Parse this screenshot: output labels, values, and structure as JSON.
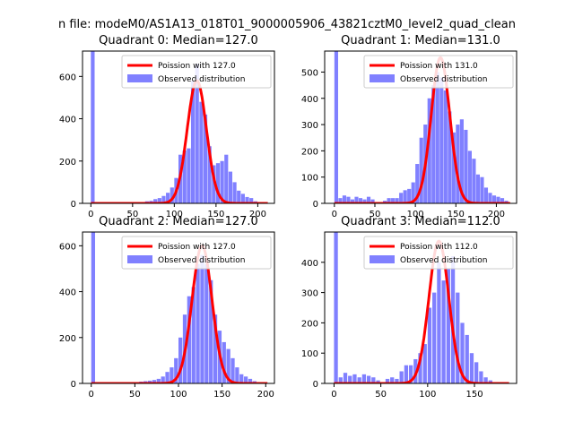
{
  "figure": {
    "suptitle": "n file: modeM0/AS1A13_018T01_9000005906_43821cztM0_level2_quad_clean"
  },
  "chart_data": [
    {
      "type": "bar",
      "title": "Quadrant 0: Median=127.0",
      "xlim": [
        -10,
        220
      ],
      "ylim": [
        0,
        720
      ],
      "xticks": [
        0,
        50,
        100,
        150,
        200
      ],
      "yticks": [
        0,
        200,
        400,
        600
      ],
      "bar_width": 4.5,
      "colors": {
        "bars": "#8080ff",
        "line": "#ff0000"
      },
      "legend": {
        "placement": "upper right",
        "entries": [
          "Poission with 127.0",
          "Observed distribution"
        ]
      },
      "poisson_mean": 127.0,
      "poisson_peak": 580,
      "poisson_sigma": 11.5,
      "series": [
        {
          "name": "Observed distribution",
          "x": [
            0,
            60,
            65,
            70,
            75,
            80,
            85,
            90,
            95,
            100,
            105,
            110,
            115,
            120,
            125,
            130,
            135,
            140,
            145,
            150,
            155,
            160,
            165,
            170,
            175,
            180,
            185,
            190,
            195,
            200
          ],
          "values": [
            720,
            5,
            10,
            12,
            20,
            25,
            35,
            50,
            75,
            120,
            230,
            250,
            260,
            580,
            660,
            480,
            420,
            270,
            180,
            190,
            200,
            230,
            150,
            100,
            60,
            45,
            30,
            25,
            10,
            5
          ]
        },
        {
          "name": "Poission with 127.0",
          "kind": "line"
        }
      ]
    },
    {
      "type": "bar",
      "title": "Quadrant 1: Median=131.0",
      "xlim": [
        -12,
        225
      ],
      "ylim": [
        0,
        580
      ],
      "xticks": [
        0,
        50,
        100,
        150,
        200
      ],
      "yticks": [
        0,
        100,
        200,
        300,
        400,
        500
      ],
      "bar_width": 4.6,
      "colors": {
        "bars": "#8080ff",
        "line": "#ff0000"
      },
      "legend": {
        "placement": "upper right",
        "entries": [
          "Poission with 131.0",
          "Observed distribution"
        ]
      },
      "poisson_mean": 131.0,
      "poisson_peak": 555,
      "poisson_sigma": 11.5,
      "series": [
        {
          "name": "Observed distribution",
          "x": [
            0,
            5,
            10,
            15,
            20,
            25,
            30,
            35,
            40,
            45,
            60,
            65,
            70,
            75,
            80,
            85,
            90,
            95,
            100,
            105,
            110,
            115,
            120,
            125,
            130,
            135,
            140,
            145,
            150,
            155,
            160,
            165,
            170,
            175,
            180,
            185,
            190,
            195,
            200,
            205,
            210
          ],
          "values": [
            580,
            20,
            30,
            25,
            15,
            25,
            20,
            15,
            25,
            15,
            10,
            20,
            20,
            20,
            40,
            50,
            55,
            80,
            150,
            250,
            300,
            400,
            450,
            500,
            480,
            430,
            350,
            270,
            300,
            320,
            280,
            200,
            170,
            110,
            100,
            60,
            40,
            30,
            25,
            20,
            10
          ]
        },
        {
          "name": "Poission with 131.0",
          "kind": "line"
        }
      ]
    },
    {
      "type": "bar",
      "title": "Quadrant 2: Median=127.0",
      "xlim": [
        -10,
        210
      ],
      "ylim": [
        0,
        660
      ],
      "xticks": [
        0,
        50,
        100,
        150,
        200
      ],
      "yticks": [
        0,
        200,
        400,
        600
      ],
      "bar_width": 4.4,
      "colors": {
        "bars": "#8080ff",
        "line": "#ff0000"
      },
      "legend": {
        "placement": "upper right",
        "entries": [
          "Poission with 127.0",
          "Observed distribution"
        ]
      },
      "poisson_mean": 127.0,
      "poisson_peak": 600,
      "poisson_sigma": 11.5,
      "series": [
        {
          "name": "Observed distribution",
          "x": [
            0,
            50,
            55,
            60,
            65,
            70,
            75,
            80,
            85,
            90,
            95,
            100,
            105,
            110,
            115,
            120,
            125,
            130,
            135,
            140,
            145,
            150,
            155,
            160,
            165,
            170,
            175,
            180,
            185,
            190
          ],
          "values": [
            660,
            5,
            8,
            10,
            12,
            15,
            20,
            30,
            50,
            70,
            110,
            200,
            300,
            380,
            420,
            520,
            560,
            520,
            450,
            300,
            230,
            180,
            150,
            110,
            70,
            40,
            30,
            20,
            10,
            5
          ]
        },
        {
          "name": "Poission with 127.0",
          "kind": "line"
        }
      ]
    },
    {
      "type": "bar",
      "title": "Quadrant 3: Median=112.0",
      "xlim": [
        -10,
        195
      ],
      "ylim": [
        0,
        500
      ],
      "xticks": [
        0,
        50,
        100,
        150
      ],
      "yticks": [
        0,
        100,
        200,
        300,
        400
      ],
      "bar_width": 4.1,
      "colors": {
        "bars": "#8080ff",
        "line": "#ff0000"
      },
      "legend": {
        "placement": "upper right",
        "entries": [
          "Poission with 112.0",
          "Observed distribution"
        ]
      },
      "poisson_mean": 112.0,
      "poisson_peak": 470,
      "poisson_sigma": 10.6,
      "series": [
        {
          "name": "Observed distribution",
          "x": [
            0,
            5,
            10,
            15,
            20,
            25,
            30,
            35,
            40,
            45,
            55,
            60,
            65,
            70,
            75,
            80,
            85,
            90,
            95,
            100,
            105,
            110,
            115,
            120,
            125,
            130,
            135,
            140,
            145,
            150,
            155,
            160,
            165
          ],
          "values": [
            500,
            20,
            35,
            25,
            30,
            20,
            30,
            25,
            20,
            10,
            15,
            20,
            15,
            40,
            60,
            60,
            80,
            100,
            130,
            250,
            300,
            400,
            340,
            380,
            420,
            300,
            200,
            160,
            100,
            70,
            40,
            20,
            10
          ]
        },
        {
          "name": "Poission with 112.0",
          "kind": "line"
        }
      ]
    }
  ]
}
